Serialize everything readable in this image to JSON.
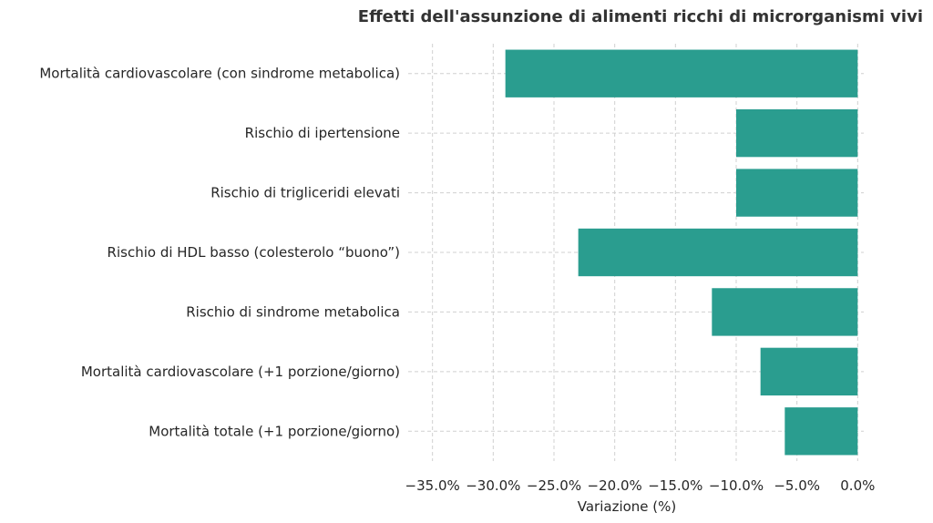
{
  "chart_data": {
    "type": "bar",
    "orientation": "horizontal",
    "title": "Effetti dell'assunzione di alimenti ricchi di microrganismi vivi",
    "xlabel": "Variazione (%)",
    "ylabel": "",
    "categories": [
      "Mortalità cardiovascolare (con sindrome metabolica)",
      "Rischio di ipertensione",
      "Rischio di trigliceridi elevati",
      "Rischio di HDL basso (colesterolo “buono”)",
      "Rischio di sindrome metabolica",
      "Mortalità cardiovascolare (+1 porzione/giorno)",
      "Mortalità totale (+1 porzione/giorno)"
    ],
    "values": [
      -29,
      -10,
      -10,
      -23,
      -12,
      -8,
      -6
    ],
    "xlim": [
      -37,
      0.5
    ],
    "xticks": [
      -35,
      -30,
      -25,
      -20,
      -15,
      -10,
      -5,
      0
    ],
    "xtick_labels": [
      "−35.0%",
      "−30.0%",
      "−25.0%",
      "−20.0%",
      "−15.0%",
      "−10.0%",
      "−5.0%",
      "0.0%"
    ],
    "grid": true,
    "bar_color": "#2a9d8f"
  }
}
